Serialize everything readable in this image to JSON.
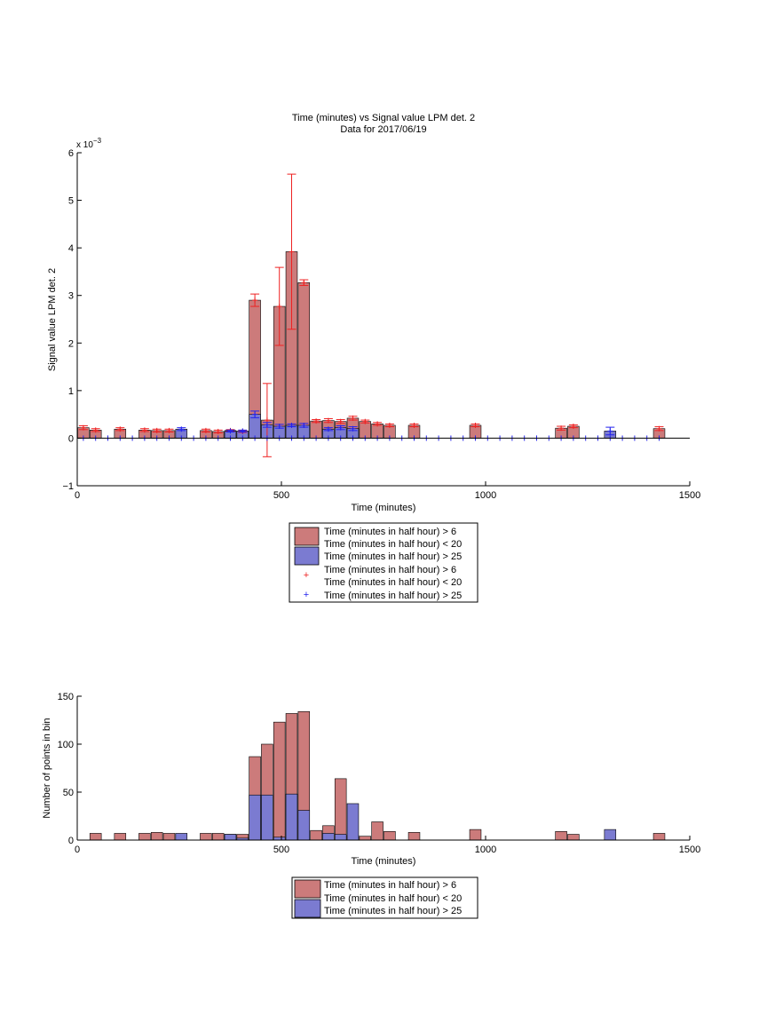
{
  "chart_data": [
    {
      "type": "bar",
      "title": "Time (minutes) vs Signal value LPM det. 2",
      "subtitle": "Data for 2017/06/19",
      "xlabel": "Time (minutes)",
      "ylabel": "Signal value LPM det. 2",
      "y_exponent_label": "x 10",
      "y_exponent_power": "−3",
      "xlim": [
        0,
        1500
      ],
      "ylim": [
        -1,
        6
      ],
      "x_ticks": [
        0,
        500,
        1000,
        1500
      ],
      "y_ticks": [
        -1,
        0,
        1,
        2,
        3,
        4,
        5,
        6
      ],
      "x_tick_labels": [
        "0",
        "500",
        "1000",
        "1500"
      ],
      "y_tick_labels": [
        "−1",
        "0",
        "1",
        "2",
        "3",
        "4",
        "5",
        "6"
      ],
      "series_colors": {
        "red_bar": "#cc7b7b",
        "blue_bar": "#7b7bd1",
        "red_marker": "#ee2222",
        "blue_marker": "#2222ee"
      },
      "red_bars": [
        {
          "x": 15,
          "y": 0.22,
          "err": 0.04
        },
        {
          "x": 45,
          "y": 0.17,
          "err": 0.03
        },
        {
          "x": 105,
          "y": 0.19,
          "err": 0.03
        },
        {
          "x": 165,
          "y": 0.17,
          "err": 0.03
        },
        {
          "x": 195,
          "y": 0.16,
          "err": 0.03
        },
        {
          "x": 225,
          "y": 0.16,
          "err": 0.03
        },
        {
          "x": 315,
          "y": 0.16,
          "err": 0.03
        },
        {
          "x": 345,
          "y": 0.14,
          "err": 0.03
        },
        {
          "x": 375,
          "y": 0.16,
          "err": 0.02
        },
        {
          "x": 405,
          "y": 0.14,
          "err": 0.02
        },
        {
          "x": 435,
          "y": 2.9,
          "err": 0.13
        },
        {
          "x": 465,
          "y": 0.38,
          "err": 0.77
        },
        {
          "x": 495,
          "y": 2.77,
          "err": 0.82
        },
        {
          "x": 525,
          "y": 3.92,
          "err": 1.63
        },
        {
          "x": 555,
          "y": 3.27,
          "err": 0.06
        },
        {
          "x": 585,
          "y": 0.36,
          "err": 0.03
        },
        {
          "x": 615,
          "y": 0.37,
          "err": 0.04
        },
        {
          "x": 645,
          "y": 0.35,
          "err": 0.04
        },
        {
          "x": 675,
          "y": 0.42,
          "err": 0.04
        },
        {
          "x": 705,
          "y": 0.35,
          "err": 0.03
        },
        {
          "x": 735,
          "y": 0.3,
          "err": 0.03
        },
        {
          "x": 765,
          "y": 0.27,
          "err": 0.03
        },
        {
          "x": 825,
          "y": 0.27,
          "err": 0.03
        },
        {
          "x": 975,
          "y": 0.27,
          "err": 0.03
        },
        {
          "x": 1185,
          "y": 0.21,
          "err": 0.04
        },
        {
          "x": 1215,
          "y": 0.25,
          "err": 0.03
        },
        {
          "x": 1425,
          "y": 0.2,
          "err": 0.04
        }
      ],
      "blue_bars": [
        {
          "x": 255,
          "y": 0.19,
          "err": 0.03
        },
        {
          "x": 375,
          "y": 0.15,
          "err": 0.02
        },
        {
          "x": 405,
          "y": 0.15,
          "err": 0.02
        },
        {
          "x": 435,
          "y": 0.5,
          "err": 0.07
        },
        {
          "x": 465,
          "y": 0.28,
          "err": 0.05
        },
        {
          "x": 495,
          "y": 0.25,
          "err": 0.04
        },
        {
          "x": 525,
          "y": 0.27,
          "err": 0.03
        },
        {
          "x": 555,
          "y": 0.27,
          "err": 0.04
        },
        {
          "x": 615,
          "y": 0.19,
          "err": 0.03
        },
        {
          "x": 645,
          "y": 0.22,
          "err": 0.04
        },
        {
          "x": 675,
          "y": 0.2,
          "err": 0.04
        },
        {
          "x": 1305,
          "y": 0.15,
          "err": 0.08
        }
      ],
      "zero_markers": [
        15,
        45,
        75,
        105,
        135,
        165,
        195,
        225,
        255,
        285,
        315,
        345,
        375,
        405,
        435,
        465,
        495,
        525,
        555,
        585,
        615,
        645,
        675,
        705,
        735,
        765,
        795,
        825,
        855,
        885,
        915,
        945,
        975,
        1005,
        1035,
        1065,
        1095,
        1125,
        1155,
        1185,
        1215,
        1245,
        1275,
        1305,
        1335,
        1365,
        1395,
        1425
      ],
      "legend_position": "bottom-outside",
      "legend": [
        "Time (minutes in half hour) > 6",
        "Time (minutes in half hour) < 20",
        "Time (minutes in half hour) > 25",
        "Time (minutes in half hour) > 6",
        "Time (minutes in half hour) < 20",
        "Time (minutes in half hour) > 25"
      ]
    },
    {
      "type": "bar",
      "xlabel": "Time (minutes)",
      "ylabel": "Number of points in bin",
      "xlim": [
        0,
        1500
      ],
      "ylim": [
        0,
        150
      ],
      "x_ticks": [
        0,
        500,
        1000,
        1500
      ],
      "y_ticks": [
        0,
        50,
        100,
        150
      ],
      "x_tick_labels": [
        "0",
        "500",
        "1000",
        "1500"
      ],
      "y_tick_labels": [
        "0",
        "50",
        "100",
        "150"
      ],
      "series_colors": {
        "red_bar": "#cc7b7b",
        "blue_bar": "#7b7bd1"
      },
      "red_bars": [
        {
          "x": 15,
          "y": 0
        },
        {
          "x": 45,
          "y": 7
        },
        {
          "x": 105,
          "y": 7
        },
        {
          "x": 165,
          "y": 7
        },
        {
          "x": 195,
          "y": 8
        },
        {
          "x": 225,
          "y": 7
        },
        {
          "x": 315,
          "y": 7
        },
        {
          "x": 345,
          "y": 7
        },
        {
          "x": 375,
          "y": 6
        },
        {
          "x": 405,
          "y": 6
        },
        {
          "x": 435,
          "y": 87
        },
        {
          "x": 465,
          "y": 100
        },
        {
          "x": 495,
          "y": 123
        },
        {
          "x": 525,
          "y": 132
        },
        {
          "x": 555,
          "y": 134
        },
        {
          "x": 585,
          "y": 10
        },
        {
          "x": 615,
          "y": 15
        },
        {
          "x": 645,
          "y": 64
        },
        {
          "x": 675,
          "y": 5
        },
        {
          "x": 705,
          "y": 4
        },
        {
          "x": 735,
          "y": 19
        },
        {
          "x": 765,
          "y": 9
        },
        {
          "x": 825,
          "y": 8
        },
        {
          "x": 975,
          "y": 11
        },
        {
          "x": 1185,
          "y": 9
        },
        {
          "x": 1215,
          "y": 6
        },
        {
          "x": 1425,
          "y": 7
        }
      ],
      "blue_bars": [
        {
          "x": 255,
          "y": 7
        },
        {
          "x": 375,
          "y": 6
        },
        {
          "x": 405,
          "y": 2
        },
        {
          "x": 435,
          "y": 47
        },
        {
          "x": 465,
          "y": 47
        },
        {
          "x": 495,
          "y": 3
        },
        {
          "x": 525,
          "y": 48
        },
        {
          "x": 555,
          "y": 31
        },
        {
          "x": 615,
          "y": 7
        },
        {
          "x": 645,
          "y": 6
        },
        {
          "x": 675,
          "y": 38
        },
        {
          "x": 1305,
          "y": 11
        }
      ],
      "legend_position": "bottom-outside",
      "legend": [
        "Time (minutes in half hour) > 6",
        "Time (minutes in half hour) < 20",
        "Time (minutes in half hour) > 25"
      ]
    }
  ]
}
